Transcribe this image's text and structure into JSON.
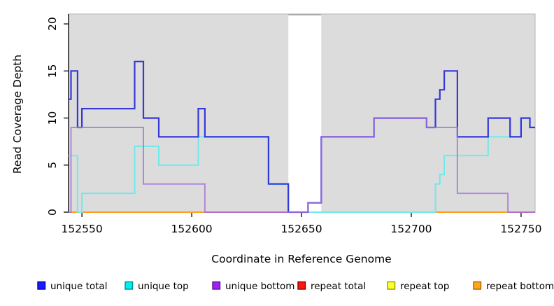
{
  "chart_data": {
    "type": "line",
    "subtype": "step-coverage",
    "title": "",
    "xlabel": "Coordinate in Reference Genome",
    "ylabel": "Read Coverage Depth",
    "xlim": [
      152543.9,
      152756.4
    ],
    "ylim": [
      0,
      21.05
    ],
    "grid": "off",
    "plot_background": "#DCDCDC",
    "outer_background": "#FFFFFF",
    "box_color": "#BEBEBE",
    "axis_color": "#000000",
    "x_ticks": [
      {
        "value": 152550,
        "label": "152550"
      },
      {
        "value": 152600,
        "label": "152600"
      },
      {
        "value": 152650,
        "label": "152650"
      },
      {
        "value": 152700,
        "label": "152700"
      },
      {
        "value": 152750,
        "label": "152750"
      }
    ],
    "y_ticks": [
      {
        "value": 0,
        "label": "0"
      },
      {
        "value": 5,
        "label": "5"
      },
      {
        "value": 10,
        "label": "10"
      },
      {
        "value": 15,
        "label": "15"
      },
      {
        "value": 20,
        "label": "20"
      }
    ],
    "gap_region": {
      "x0": 152644,
      "x1": 152659,
      "fill": "#FFFFFF",
      "top_border": "#8C8C8C"
    },
    "series": [
      {
        "name": "repeat total",
        "layer": "back",
        "color": "#D4627E",
        "width": 1.8,
        "opacity": 1,
        "steps": [
          [
            152543.9,
            0
          ]
        ]
      },
      {
        "name": "repeat top",
        "layer": "back",
        "color": "#E8E850",
        "width": 1.8,
        "opacity": 1,
        "steps": [
          [
            152543.9,
            0
          ]
        ]
      },
      {
        "name": "repeat bottom",
        "layer": "back",
        "color": "#FF9E1F",
        "width": 2,
        "opacity": 1,
        "steps": [
          [
            152543.9,
            0
          ]
        ]
      },
      {
        "name": "unique top",
        "layer": "front",
        "color": "#70E9E9",
        "width": 2,
        "opacity": 1,
        "steps": [
          [
            152543.9,
            6
          ],
          [
            152548,
            0
          ],
          [
            152550,
            2
          ],
          [
            152574,
            7
          ],
          [
            152585,
            5
          ],
          [
            152603,
            8
          ],
          [
            152635,
            3
          ],
          [
            152644,
            0
          ],
          [
            152711,
            3
          ],
          [
            152713,
            4
          ],
          [
            152715,
            6
          ],
          [
            152735,
            8
          ],
          [
            152750,
            10
          ],
          [
            152754,
            9
          ]
        ]
      },
      {
        "name": "unique total",
        "layer": "front",
        "color": "#2526D8",
        "width": 2.2,
        "opacity": 0.9,
        "steps": [
          [
            152543.9,
            12
          ],
          [
            152545,
            15
          ],
          [
            152548,
            9
          ],
          [
            152550,
            11
          ],
          [
            152574,
            16
          ],
          [
            152578,
            10
          ],
          [
            152585,
            8
          ],
          [
            152603,
            11
          ],
          [
            152606,
            8
          ],
          [
            152635,
            3
          ],
          [
            152644,
            0
          ],
          [
            152653,
            1
          ],
          [
            152659,
            8
          ],
          [
            152683,
            10
          ],
          [
            152707,
            9
          ],
          [
            152711,
            12
          ],
          [
            152713,
            13
          ],
          [
            152715,
            15
          ],
          [
            152721,
            8
          ],
          [
            152735,
            10
          ],
          [
            152745,
            8
          ],
          [
            152750,
            10
          ],
          [
            152754,
            9
          ]
        ]
      },
      {
        "name": "unique bottom",
        "layer": "front",
        "color": "#A872DB",
        "width": 2,
        "opacity": 0.8,
        "steps": [
          [
            152543.9,
            0
          ],
          [
            152545,
            9
          ],
          [
            152578,
            3
          ],
          [
            152606,
            0
          ],
          [
            152653,
            1
          ],
          [
            152659,
            8
          ],
          [
            152683,
            10
          ],
          [
            152707,
            9
          ],
          [
            152721,
            2
          ],
          [
            152744,
            0
          ]
        ]
      }
    ],
    "zero_line_segments": [
      {
        "x0": 152543.9,
        "x1": 152606,
        "color": "#FF9E1F",
        "series": "repeat bottom"
      },
      {
        "x0": 152606,
        "x1": 152644,
        "color": "#D4627E",
        "series": "repeat total"
      },
      {
        "x0": 152659,
        "x1": 152711,
        "color": "#8FD88F",
        "series": "repeat top"
      },
      {
        "x0": 152711,
        "x1": 152744,
        "color": "#FF9E1F",
        "series": "repeat bottom"
      },
      {
        "x0": 152744,
        "x1": 152756.4,
        "color": "#D4627E",
        "series": "repeat total"
      }
    ],
    "legend": {
      "position": "bottom",
      "items": [
        {
          "label": "unique total",
          "fill": "#1A1AFF",
          "border": "#0000A0"
        },
        {
          "label": "unique top",
          "fill": "#00F0F0",
          "border": "#008B8B"
        },
        {
          "label": "unique bottom",
          "fill": "#A020F0",
          "border": "#5D1691"
        },
        {
          "label": "repeat total",
          "fill": "#FF1414",
          "border": "#8B0000"
        },
        {
          "label": "repeat top",
          "fill": "#FFFF2E",
          "border": "#9A9A00"
        },
        {
          "label": "repeat bottom",
          "fill": "#FFA51E",
          "border": "#A66400"
        }
      ]
    }
  }
}
